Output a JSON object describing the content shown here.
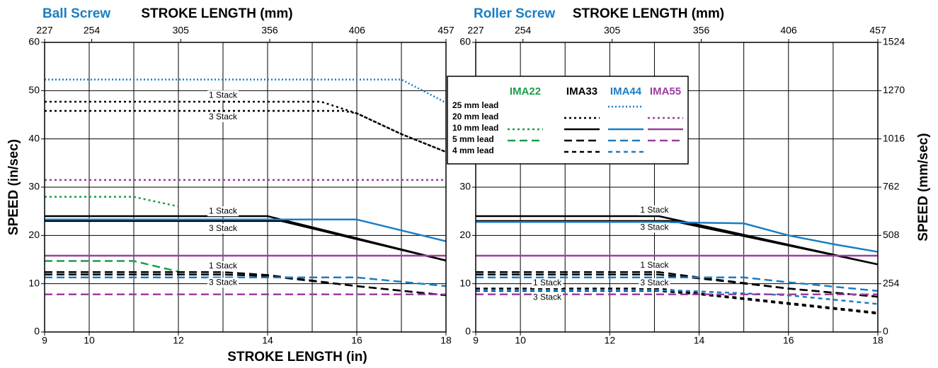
{
  "chart_data": [
    {
      "type": "line",
      "title": "Ball Screw",
      "x2label": "STROKE LENGTH (mm)",
      "ylabel": "SPEED (in/sec)",
      "xlim": [
        9,
        18
      ],
      "xticks": [
        9,
        10,
        12,
        14,
        16,
        18
      ],
      "xgrid": [
        10,
        11,
        12,
        13,
        14,
        15,
        16,
        17
      ],
      "x2lim": [
        227,
        457
      ],
      "x2ticks": [
        227,
        254,
        305,
        356,
        406,
        457
      ],
      "ylim": [
        0,
        60
      ],
      "yticks": [
        0,
        10,
        20,
        30,
        40,
        50,
        60
      ],
      "grid": true,
      "series": [
        {
          "color": "#1a7dc4",
          "style": "finedot",
          "x": [
            9,
            17,
            18
          ],
          "values": [
            52.3,
            52.3,
            47.5
          ]
        },
        {
          "color": "#000000",
          "style": "dot",
          "x": [
            9,
            15.2,
            16,
            17,
            18
          ],
          "values": [
            47.7,
            47.7,
            45.3,
            41,
            37.3
          ]
        },
        {
          "color": "#000000",
          "style": "dot",
          "x": [
            9,
            15.7,
            16,
            17,
            18
          ],
          "values": [
            45.8,
            45.8,
            45.3,
            41,
            37.3
          ]
        },
        {
          "color": "#9b3fa0",
          "style": "dot",
          "x": [
            9,
            18
          ],
          "values": [
            31.5,
            31.5
          ]
        },
        {
          "color": "#1a9e4a",
          "style": "dot",
          "x": [
            9,
            11,
            12
          ],
          "values": [
            28,
            28,
            26
          ]
        },
        {
          "color": "#000000",
          "style": "solid",
          "x": [
            9,
            14,
            18
          ],
          "values": [
            24,
            24,
            14.8
          ]
        },
        {
          "color": "#000000",
          "style": "solid",
          "x": [
            9,
            14.3,
            18
          ],
          "values": [
            23,
            23,
            14.8
          ]
        },
        {
          "color": "#1a7dc4",
          "style": "solid",
          "x": [
            9,
            16,
            18
          ],
          "values": [
            23.3,
            23.3,
            18.8
          ]
        },
        {
          "color": "#9b3fa0",
          "style": "solid",
          "x": [
            9,
            18
          ],
          "values": [
            15.8,
            15.8
          ]
        },
        {
          "color": "#1a9e4a",
          "style": "dash",
          "x": [
            9,
            11,
            12
          ],
          "values": [
            14.7,
            14.7,
            12.5
          ]
        },
        {
          "color": "#000000",
          "style": "dash",
          "x": [
            9,
            13,
            14,
            16,
            18
          ],
          "values": [
            12.4,
            12.4,
            11.8,
            9.5,
            7.6
          ]
        },
        {
          "color": "#000000",
          "style": "dash",
          "x": [
            9,
            13,
            14,
            16,
            18
          ],
          "values": [
            11.9,
            11.9,
            11.6,
            9.5,
            7.6
          ]
        },
        {
          "color": "#1a7dc4",
          "style": "dash",
          "x": [
            9,
            16,
            18
          ],
          "values": [
            11.3,
            11.3,
            9.5
          ]
        },
        {
          "color": "#9b3fa0",
          "style": "dash",
          "x": [
            9,
            18
          ],
          "values": [
            7.8,
            7.8
          ]
        }
      ],
      "annotations": [
        {
          "text": "1 Stack",
          "x": 13,
          "y": 49
        },
        {
          "text": "3 Stack",
          "x": 13,
          "y": 44.5
        },
        {
          "text": "1 Stack",
          "x": 13,
          "y": 25
        },
        {
          "text": "3 Stack",
          "x": 13,
          "y": 21.4
        },
        {
          "text": "1 Stack",
          "x": 13,
          "y": 13.6
        },
        {
          "text": "3 Stack",
          "x": 13,
          "y": 10.2
        }
      ]
    },
    {
      "type": "line",
      "title": "Roller Screw",
      "x2label": "STROKE LENGTH (mm)",
      "y2label": "SPEED (mm/sec)",
      "xlim": [
        9,
        18
      ],
      "xticks": [
        9,
        10,
        12,
        14,
        16,
        18
      ],
      "xgrid": [
        10,
        11,
        12,
        13,
        14,
        15,
        16,
        17
      ],
      "x2lim": [
        227,
        457
      ],
      "x2ticks": [
        227,
        254,
        305,
        356,
        406,
        457
      ],
      "ylim": [
        0,
        60
      ],
      "yticks": [
        0,
        10,
        20,
        30,
        40,
        50,
        60
      ],
      "grid": true,
      "y2lim": [
        0,
        1524
      ],
      "y2ticks": [
        0,
        254,
        508,
        762,
        1016,
        1270,
        1524
      ],
      "series": [
        {
          "color": "#000000",
          "style": "solid",
          "x": [
            9,
            13.1,
            18
          ],
          "values": [
            24,
            24,
            14
          ]
        },
        {
          "color": "#000000",
          "style": "solid",
          "x": [
            9,
            13.4,
            18
          ],
          "values": [
            23,
            23,
            14
          ]
        },
        {
          "color": "#1a7dc4",
          "style": "solid",
          "x": [
            9,
            13,
            15,
            16,
            17,
            18
          ],
          "values": [
            22.8,
            22.8,
            22.5,
            20,
            18.2,
            16.6
          ]
        },
        {
          "color": "#9b3fa0",
          "style": "solid",
          "x": [
            9,
            18
          ],
          "values": [
            15.8,
            15.8
          ]
        },
        {
          "color": "#000000",
          "style": "dash",
          "x": [
            9,
            13.1,
            14,
            16,
            18
          ],
          "values": [
            12.4,
            12.4,
            11.3,
            9,
            7.3
          ]
        },
        {
          "color": "#000000",
          "style": "dash",
          "x": [
            9,
            13.1,
            14,
            16,
            18
          ],
          "values": [
            11.9,
            11.9,
            11.1,
            9,
            7.3
          ]
        },
        {
          "color": "#1a7dc4",
          "style": "dash",
          "x": [
            9,
            15,
            16,
            18
          ],
          "values": [
            11.3,
            11.3,
            10.3,
            8.5
          ]
        },
        {
          "color": "#000000",
          "style": "shortdash",
          "x": [
            9,
            13.1,
            14,
            16,
            18
          ],
          "values": [
            9,
            9,
            8,
            6,
            4
          ]
        },
        {
          "color": "#000000",
          "style": "shortdash",
          "x": [
            9,
            13.1,
            14,
            16,
            18
          ],
          "values": [
            8.5,
            8.5,
            7.8,
            5.8,
            3.8
          ]
        },
        {
          "color": "#1a7dc4",
          "style": "shortdash",
          "x": [
            9,
            13.5,
            16,
            18
          ],
          "values": [
            8.6,
            8.6,
            7.6,
            5.8
          ]
        },
        {
          "color": "#9b3fa0",
          "style": "dash",
          "x": [
            9,
            18
          ],
          "values": [
            7.8,
            7.8
          ]
        }
      ],
      "annotations": [
        {
          "text": "1 Stack",
          "x": 13,
          "y": 25.2
        },
        {
          "text": "3 Stack",
          "x": 13,
          "y": 21.6
        },
        {
          "text": "1 Stack",
          "x": 13,
          "y": 13.8
        },
        {
          "text": "1 Stack",
          "x": 10.6,
          "y": 10.1
        },
        {
          "text": "3 Stack",
          "x": 13,
          "y": 10.1
        },
        {
          "text": "3 Stack",
          "x": 10.6,
          "y": 7.1
        }
      ]
    }
  ],
  "xlabel": "STROKE LENGTH (in)",
  "legend": {
    "columns": [
      "IMA22",
      "IMA33",
      "IMA44",
      "IMA55"
    ],
    "column_colors": [
      "#1a9e4a",
      "#000000",
      "#1a7dc4",
      "#9b3fa0"
    ],
    "rows": [
      "25 mm lead",
      "20 mm lead",
      "10 mm lead",
      "5 mm lead",
      "4 mm lead"
    ],
    "samples": [
      [
        null,
        null,
        "finedot",
        null
      ],
      [
        null,
        "dot",
        null,
        "dot"
      ],
      [
        "dot",
        "solid",
        "solid",
        "solid"
      ],
      [
        "dash",
        "dash",
        "dash",
        "dash"
      ],
      [
        null,
        "shortdash",
        "shortdash",
        null
      ]
    ]
  }
}
